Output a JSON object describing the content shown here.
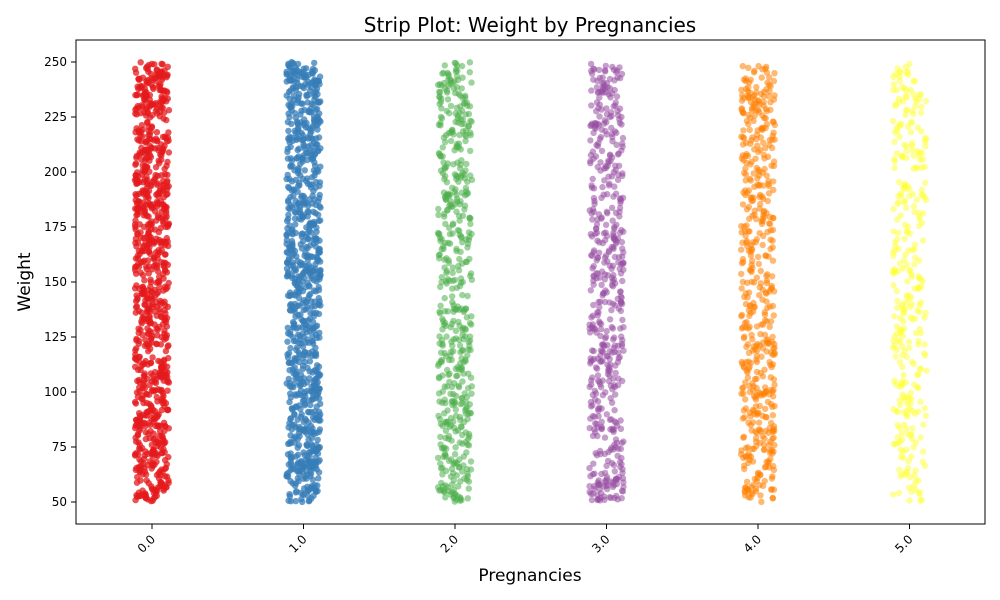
{
  "chart_data": {
    "type": "scatter",
    "subtype": "strip",
    "title": "Strip Plot: Weight by Pregnancies",
    "xlabel": "Pregnancies",
    "ylabel": "Weight",
    "categories": [
      "0.0",
      "1.0",
      "2.0",
      "3.0",
      "4.0",
      "5.0"
    ],
    "y_ticks": [
      50,
      75,
      100,
      125,
      150,
      175,
      200,
      225,
      250
    ],
    "ylim": [
      40,
      260
    ],
    "x_tick_rotation": "45 degrees",
    "grid": false,
    "legend": "none",
    "series": [
      {
        "category": "0.0",
        "color": "#e41a1c",
        "y_range": [
          50,
          250
        ],
        "density": "very high"
      },
      {
        "category": "1.0",
        "color": "#377eb8",
        "y_range": [
          50,
          250
        ],
        "density": "very high"
      },
      {
        "category": "2.0",
        "color": "#4daf4a",
        "y_range": [
          50,
          250
        ],
        "density": "high"
      },
      {
        "category": "3.0",
        "color": "#984ea3",
        "y_range": [
          50,
          250
        ],
        "density": "high"
      },
      {
        "category": "4.0",
        "color": "#ff7f00",
        "y_range": [
          50,
          250
        ],
        "density": "high"
      },
      {
        "category": "5.0",
        "color": "#ffff33",
        "y_range": [
          50,
          250
        ],
        "density": "medium"
      }
    ]
  }
}
